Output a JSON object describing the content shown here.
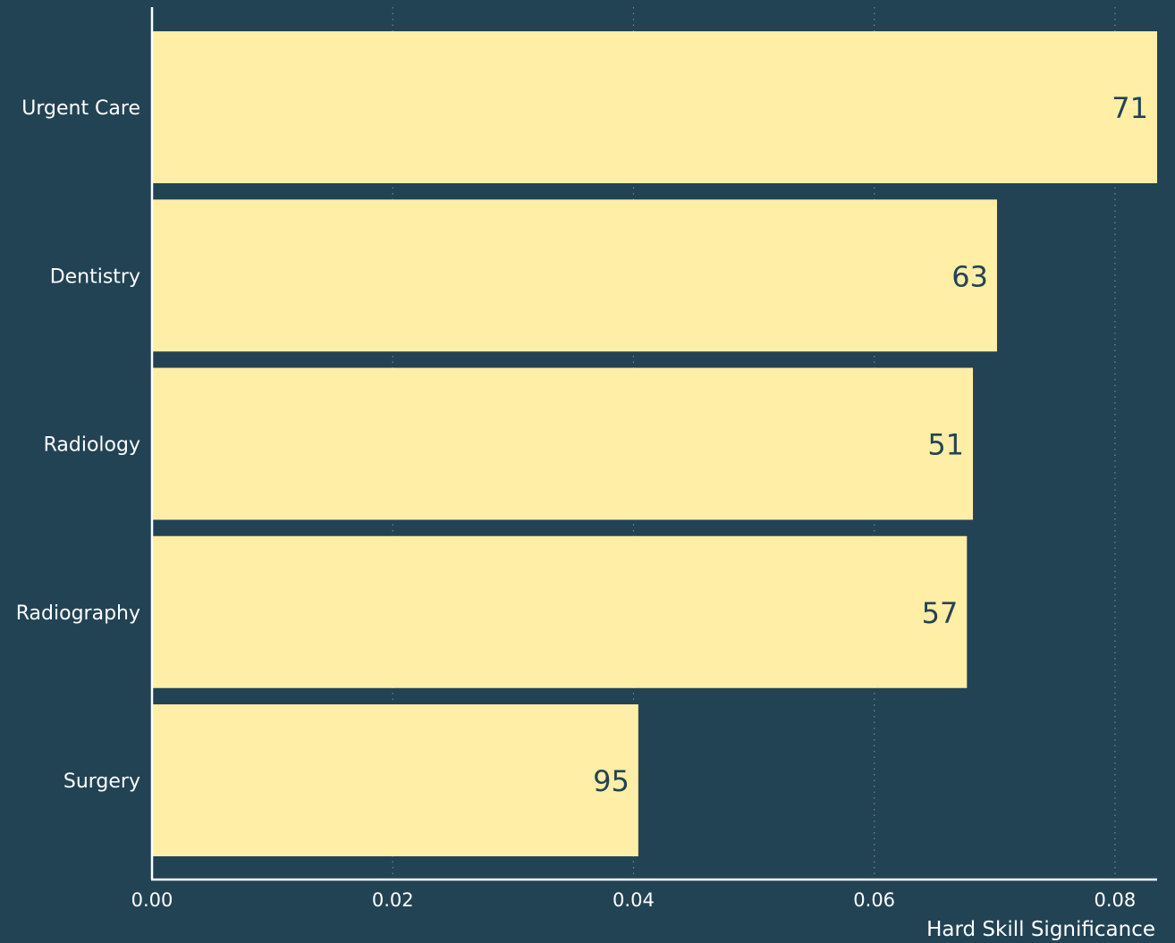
{
  "colors": {
    "background": "#224354",
    "bar": "#ffeea6",
    "bar_label": "#224354",
    "text": "#ffffff",
    "grid": "#6e8a96",
    "axis": "#ffffff"
  },
  "chart_data": {
    "type": "bar",
    "orientation": "horizontal",
    "categories": [
      "Urgent Care",
      "Dentistry",
      "Radiology",
      "Radiography",
      "Surgery"
    ],
    "values": [
      0.0835,
      0.0702,
      0.0682,
      0.0677,
      0.0404
    ],
    "data_labels": [
      "71",
      "63",
      "51",
      "57",
      "95"
    ],
    "title": "",
    "xlabel": "Hard Skill Significance",
    "ylabel": "",
    "xlim": [
      0,
      0.0835
    ],
    "xticks": [
      0.0,
      0.02,
      0.04,
      0.06,
      0.08
    ],
    "xtick_labels": [
      "0.00",
      "0.02",
      "0.04",
      "0.06",
      "0.08"
    ],
    "grid": "x-dotted",
    "legend": "none"
  }
}
